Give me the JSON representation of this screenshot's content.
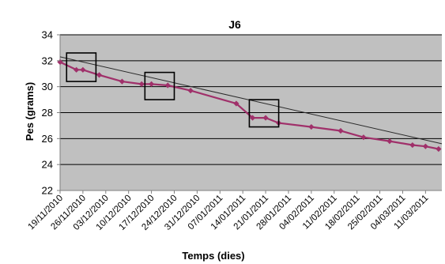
{
  "chart_data": {
    "type": "line",
    "title": "J6",
    "xlabel": "Temps (dies)",
    "ylabel": "Pes (grams)",
    "ylim": [
      22,
      34
    ],
    "y_ticks": [
      "22",
      "24",
      "26",
      "28",
      "30",
      "32",
      "34"
    ],
    "x_ticks": [
      "19/11/2010",
      "26/11/2010",
      "03/12/2010",
      "10/12/2010",
      "17/12/2010",
      "24/12/2010",
      "31/12/2010",
      "07/01/2011",
      "14/01/2011",
      "21/01/2011",
      "28/01/2011",
      "04/02/2011",
      "11/02/2011",
      "18/02/2011",
      "25/02/2011",
      "04/03/2011",
      "11/03/2011"
    ],
    "xlim": [
      "2010-11-19",
      "2011-03-16"
    ],
    "grid": "horizontal",
    "plot_background": "#c0c0c0",
    "series": [
      {
        "color": "#a0306a",
        "marker": "diamond",
        "points": [
          {
            "x": "2010-11-19",
            "y": 31.9
          },
          {
            "x": "2010-11-24",
            "y": 31.3
          },
          {
            "x": "2010-11-26",
            "y": 31.3
          },
          {
            "x": "2010-12-01",
            "y": 30.9
          },
          {
            "x": "2010-12-08",
            "y": 30.4
          },
          {
            "x": "2010-12-14",
            "y": 30.2
          },
          {
            "x": "2010-12-17",
            "y": 30.2
          },
          {
            "x": "2010-12-22",
            "y": 30.1
          },
          {
            "x": "2010-12-29",
            "y": 29.7
          },
          {
            "x": "2011-01-12",
            "y": 28.7
          },
          {
            "x": "2011-01-17",
            "y": 27.6
          },
          {
            "x": "2011-01-21",
            "y": 27.6
          },
          {
            "x": "2011-01-25",
            "y": 27.2
          },
          {
            "x": "2011-02-04",
            "y": 26.9
          },
          {
            "x": "2011-02-13",
            "y": 26.6
          },
          {
            "x": "2011-02-20",
            "y": 26.1
          },
          {
            "x": "2011-02-28",
            "y": 25.8
          },
          {
            "x": "2011-03-07",
            "y": 25.5
          },
          {
            "x": "2011-03-11",
            "y": 25.4
          },
          {
            "x": "2011-03-15",
            "y": 25.2
          }
        ]
      }
    ],
    "trendline": {
      "color": "#2a2a2a",
      "start": {
        "x": "2010-11-19",
        "y": 32.3
      },
      "end": {
        "x": "2011-03-16",
        "y": 25.6
      }
    },
    "annotation_boxes": [
      {
        "x0": "2010-11-21",
        "x1": "2010-11-30",
        "y0": 30.4,
        "y1": 32.6
      },
      {
        "x0": "2010-12-15",
        "x1": "2010-12-24",
        "y0": 29.0,
        "y1": 31.1
      },
      {
        "x0": "2011-01-16",
        "x1": "2011-01-25",
        "y0": 26.9,
        "y1": 29.0
      }
    ]
  }
}
